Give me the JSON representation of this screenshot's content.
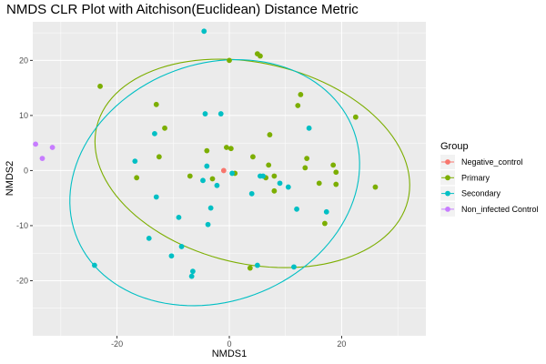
{
  "chart_data": {
    "type": "scatter",
    "title": "NMDS CLR Plot with Aitchison(Euclidean) Distance Metric",
    "xlabel": "NMDS1",
    "ylabel": "NMDS2",
    "xlim": [
      -35,
      35
    ],
    "ylim": [
      -30,
      27
    ],
    "xticks": [
      -20,
      0,
      20
    ],
    "yticks": [
      -20,
      -10,
      0,
      10,
      20
    ],
    "x_tick_labels": [
      "-20",
      "0",
      "20"
    ],
    "y_tick_labels": [
      "-20",
      "-10",
      "0",
      "10",
      "20"
    ],
    "grid": true,
    "legend": {
      "title": "Group",
      "position": "right"
    },
    "series": [
      {
        "name": "Negative_control",
        "color": "#F8766D",
        "points": [
          [
            -1,
            0
          ]
        ]
      },
      {
        "name": "Primary",
        "color": "#7CAE00",
        "points": [
          [
            -23,
            15.3
          ],
          [
            -13,
            12
          ],
          [
            -11.5,
            7.7
          ],
          [
            -12.5,
            2.5
          ],
          [
            -16.5,
            -1.3
          ],
          [
            -7,
            -1
          ],
          [
            -4,
            3.6
          ],
          [
            -3,
            -1.5
          ],
          [
            0,
            20
          ],
          [
            -0.5,
            4.2
          ],
          [
            0.3,
            4
          ],
          [
            1,
            -0.5
          ],
          [
            5,
            21.2
          ],
          [
            5.5,
            20.8
          ],
          [
            7.2,
            6.5
          ],
          [
            4.2,
            2.5
          ],
          [
            7,
            1
          ],
          [
            8,
            -1
          ],
          [
            6.5,
            -1.3
          ],
          [
            8,
            -3.7
          ],
          [
            3.7,
            -17.7
          ],
          [
            12.2,
            11.8
          ],
          [
            12.7,
            13.8
          ],
          [
            13.8,
            2.2
          ],
          [
            13.5,
            0.5
          ],
          [
            16,
            -2.3
          ],
          [
            17,
            -9.6
          ],
          [
            18.5,
            1
          ],
          [
            19,
            -0.3
          ],
          [
            19,
            -2.5
          ],
          [
            22.5,
            9.7
          ],
          [
            26,
            -3
          ]
        ]
      },
      {
        "name": "Secondary",
        "color": "#00BFC4",
        "points": [
          [
            -4.5,
            25.3
          ],
          [
            -4.3,
            10.3
          ],
          [
            -1.5,
            10.3
          ],
          [
            -13.3,
            6.7
          ],
          [
            -16.8,
            1.7
          ],
          [
            -13,
            -4.8
          ],
          [
            -9,
            -8.5
          ],
          [
            -14.3,
            -12.3
          ],
          [
            -10.3,
            -15.5
          ],
          [
            -8.5,
            -13.8
          ],
          [
            -6.5,
            -18.3
          ],
          [
            -6.7,
            -19.2
          ],
          [
            -24,
            -17.2
          ],
          [
            -4,
            0.8
          ],
          [
            -4.7,
            -1.8
          ],
          [
            -2.2,
            -2.7
          ],
          [
            -3.3,
            -6.8
          ],
          [
            -3.8,
            -9.8
          ],
          [
            0.5,
            -0.5
          ],
          [
            4,
            -4.2
          ],
          [
            5.5,
            -1
          ],
          [
            6,
            -1
          ],
          [
            9,
            -2.3
          ],
          [
            10.5,
            -3
          ],
          [
            12,
            -7
          ],
          [
            14.2,
            7.7
          ],
          [
            11.5,
            -17.5
          ],
          [
            17.3,
            -7.5
          ],
          [
            5,
            -17.2
          ]
        ]
      },
      {
        "name": "Non_infected Control",
        "color": "#C77CFF",
        "points": [
          [
            -34.5,
            4.8
          ],
          [
            -31.5,
            4.2
          ],
          [
            -33.3,
            2.2
          ]
        ]
      }
    ],
    "ellipses": [
      {
        "series": "Primary",
        "center_x": 4.1,
        "center_y": 1.3,
        "semi_axis_x": 28.5,
        "semi_axis_y": 18.2,
        "rotation_deg": -13.7
      },
      {
        "series": "Secondary",
        "center_x": -2.6,
        "center_y": -2.2,
        "semi_axis_x": 26.5,
        "semi_axis_y": 21.5,
        "rotation_deg": 23
      }
    ]
  }
}
